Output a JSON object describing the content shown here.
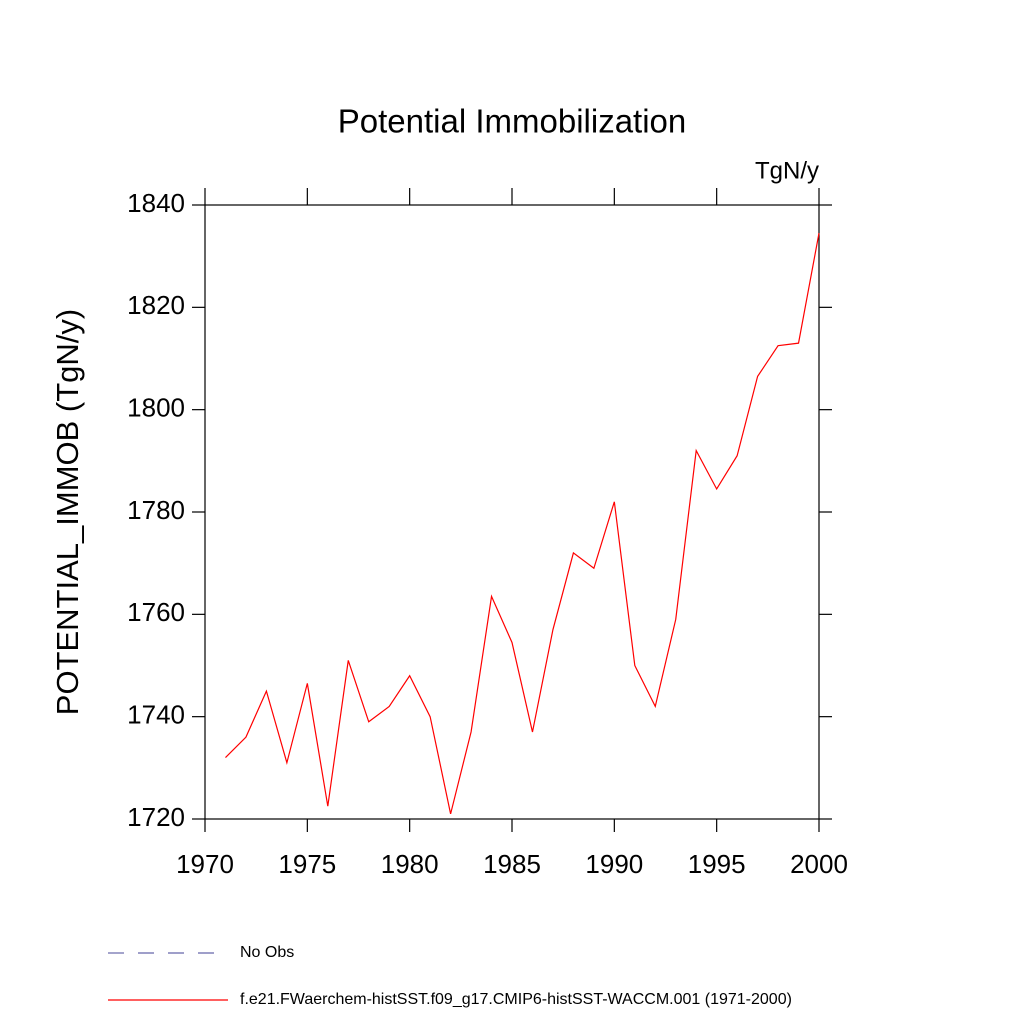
{
  "chart_data": {
    "type": "line",
    "title": "Potential Immobilization",
    "units": "TgN/y",
    "y_label": "POTENTIAL_IMMOB  (TgN/y)",
    "x": [
      1971,
      1972,
      1973,
      1974,
      1975,
      1976,
      1977,
      1978,
      1979,
      1980,
      1981,
      1982,
      1983,
      1984,
      1985,
      1986,
      1987,
      1988,
      1989,
      1990,
      1991,
      1992,
      1993,
      1994,
      1995,
      1996,
      1997,
      1998,
      1999,
      2000
    ],
    "series": [
      {
        "name": "No Obs",
        "color": "#6666aa",
        "line_style": "dashed",
        "values": [
          null,
          null,
          null,
          null,
          null,
          null,
          null,
          null,
          null,
          null,
          null,
          null,
          null,
          null,
          null,
          null,
          null,
          null,
          null,
          null,
          null,
          null,
          null,
          null,
          null,
          null,
          null,
          null,
          null,
          null
        ]
      },
      {
        "name": "f.e21.FWaerchem-histSST.f09_g17.CMIP6-histSST-WACCM.001 (1971-2000)",
        "color": "#ff0000",
        "line_style": "solid",
        "values": [
          1732,
          1736,
          1745,
          1731,
          1746.5,
          1722.5,
          1751,
          1739,
          1742,
          1748,
          1740,
          1721,
          1737,
          1763.5,
          1754.5,
          1737,
          1757,
          1772,
          1769,
          1782,
          1750,
          1742,
          1759,
          1792,
          1784.5,
          1791,
          1806.5,
          1812.5,
          1813,
          1834.5
        ]
      }
    ],
    "xlim": [
      1970,
      2000
    ],
    "xticks": [
      1970,
      1975,
      1980,
      1985,
      1990,
      1995,
      2000
    ],
    "ylim": [
      1720,
      1840
    ],
    "yticks": [
      1720,
      1740,
      1760,
      1780,
      1800,
      1820,
      1840
    ],
    "grid": false
  }
}
